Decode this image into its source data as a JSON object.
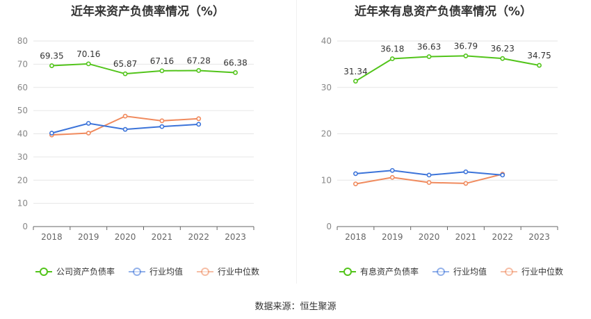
{
  "source_label": "数据来源：恒生聚源",
  "chart_data": [
    {
      "type": "line",
      "title": "近年来资产负债率情况（%）",
      "categories": [
        "2018",
        "2019",
        "2020",
        "2021",
        "2022",
        "2023"
      ],
      "ylim": [
        0,
        80
      ],
      "yticks": [
        0,
        10,
        20,
        30,
        40,
        50,
        60,
        70,
        80
      ],
      "grid": true,
      "legend_position": "bottom",
      "series": [
        {
          "name": "公司资产负债率",
          "color": "#52c41a",
          "values": [
            69.35,
            70.16,
            65.87,
            67.16,
            67.28,
            66.38
          ],
          "labels": [
            "69.35",
            "70.16",
            "65.87",
            "67.16",
            "67.28",
            "66.38"
          ]
        },
        {
          "name": "行业均值",
          "color": "#3b73d9",
          "values": [
            40.3,
            44.5,
            41.9,
            43.1,
            44.1,
            null
          ]
        },
        {
          "name": "行业中位数",
          "color": "#f08a5d",
          "values": [
            39.5,
            40.3,
            47.6,
            45.6,
            46.5,
            null
          ]
        }
      ]
    },
    {
      "type": "line",
      "title": "近年来有息资产负债率情况（%）",
      "categories": [
        "2018",
        "2019",
        "2020",
        "2021",
        "2022",
        "2023"
      ],
      "ylim": [
        0,
        40
      ],
      "yticks": [
        0,
        10,
        20,
        30,
        40
      ],
      "grid": true,
      "legend_position": "bottom",
      "series": [
        {
          "name": "有息资产负债率",
          "color": "#52c41a",
          "values": [
            31.34,
            36.18,
            36.63,
            36.79,
            36.23,
            34.75
          ],
          "labels": [
            "31.34",
            "36.18",
            "36.63",
            "36.79",
            "36.23",
            "34.75"
          ]
        },
        {
          "name": "行业均值",
          "color": "#3b73d9",
          "values": [
            11.4,
            12.1,
            11.1,
            11.8,
            11.1,
            null
          ]
        },
        {
          "name": "行业中位数",
          "color": "#f08a5d",
          "values": [
            9.2,
            10.6,
            9.5,
            9.3,
            11.3,
            null
          ]
        }
      ]
    }
  ]
}
